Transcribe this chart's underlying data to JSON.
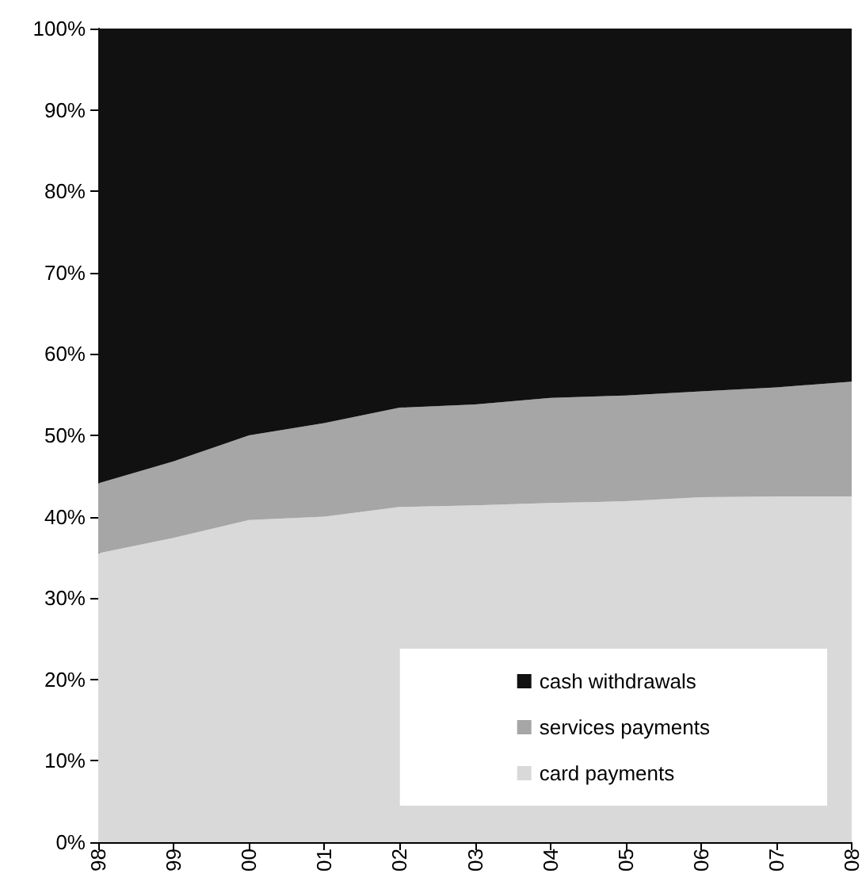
{
  "chart_data": {
    "type": "area",
    "stacked": true,
    "categories": [
      "98",
      "99",
      "00",
      "01",
      "02",
      "03",
      "04",
      "05",
      "06",
      "07",
      "08"
    ],
    "series": [
      {
        "name": "card payments",
        "color": "#d9d9d9",
        "values": [
          35.5,
          37.4,
          39.6,
          40.0,
          41.2,
          41.4,
          41.7,
          41.9,
          42.4,
          42.5,
          42.5
        ]
      },
      {
        "name": "services payments",
        "color": "#a6a6a6",
        "values": [
          8.6,
          9.4,
          10.4,
          11.5,
          12.2,
          12.4,
          12.9,
          13.0,
          13.0,
          13.4,
          14.1
        ]
      },
      {
        "name": "cash withdrawals",
        "color": "#111111",
        "values": [
          55.9,
          53.2,
          50.0,
          48.5,
          46.6,
          46.2,
          45.4,
          45.1,
          44.6,
          44.1,
          43.4
        ]
      }
    ],
    "ylim": [
      0,
      100
    ],
    "yticks": [
      {
        "value": 0,
        "label": "0%"
      },
      {
        "value": 10,
        "label": "10%"
      },
      {
        "value": 20,
        "label": "20%"
      },
      {
        "value": 30,
        "label": "30%"
      },
      {
        "value": 40,
        "label": "40%"
      },
      {
        "value": 50,
        "label": "50%"
      },
      {
        "value": 60,
        "label": "60%"
      },
      {
        "value": 70,
        "label": "70%"
      },
      {
        "value": 80,
        "label": "80%"
      },
      {
        "value": 90,
        "label": "90%"
      },
      {
        "value": 100,
        "label": "100%"
      }
    ],
    "grid": false,
    "legend": "bottom right",
    "marker": "none"
  }
}
